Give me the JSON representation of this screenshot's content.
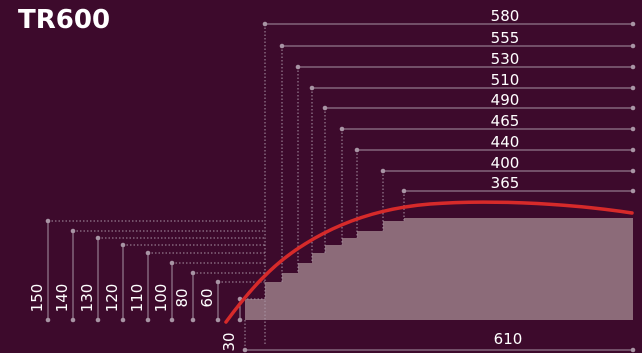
{
  "title": "TR600",
  "colors": {
    "background": "#3d0a2c",
    "step_fill": "#8c6b79",
    "curve": "#d62a2a",
    "dimension_line": "#a894a4",
    "text": "#ffffff"
  },
  "width_labels": [
    "580",
    "555",
    "530",
    "510",
    "490",
    "465",
    "440",
    "400",
    "365"
  ],
  "height_labels": [
    "150",
    "140",
    "130",
    "120",
    "110",
    "100",
    "80",
    "60",
    "30"
  ],
  "base_width_label": "610"
}
